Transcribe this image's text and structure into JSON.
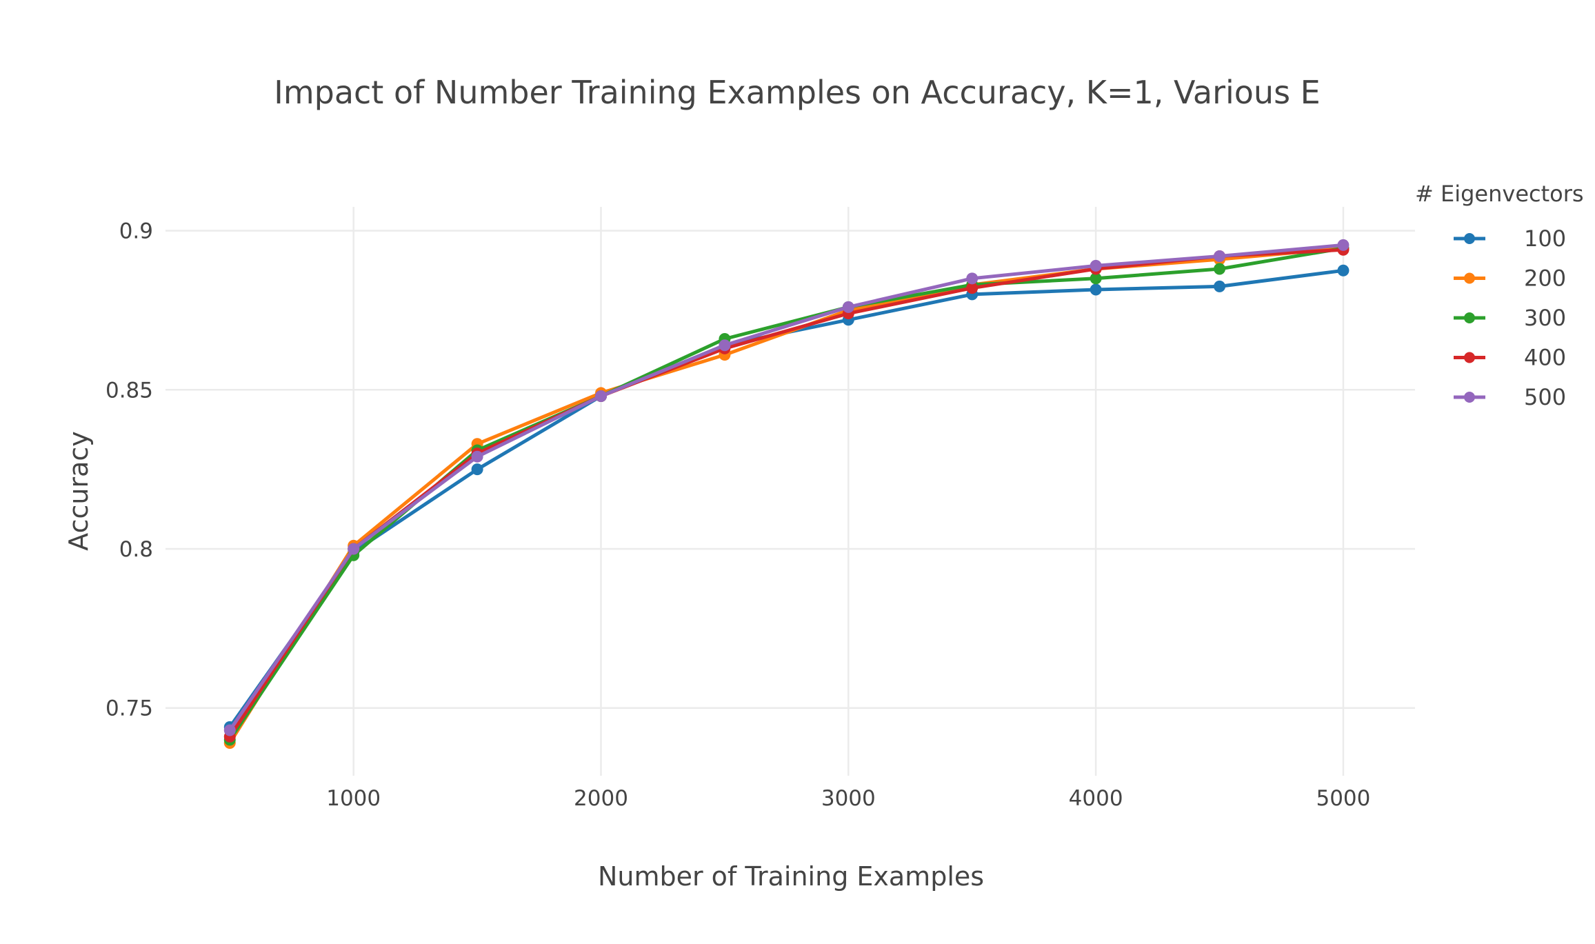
{
  "chart_data": {
    "type": "line",
    "title": "Impact of Number Training Examples on Accuracy, K=1, Various E",
    "xlabel": "Number of Training Examples",
    "ylabel": "Accuracy",
    "x": [
      500,
      1000,
      1500,
      2000,
      2500,
      3000,
      3500,
      4000,
      4500,
      5000
    ],
    "xlim": [
      240,
      5290
    ],
    "ylim": [
      0.7287,
      0.9075
    ],
    "xticks": [
      1000,
      2000,
      3000,
      4000,
      5000
    ],
    "xtick_labels": [
      "1000",
      "2000",
      "3000",
      "4000",
      "5000"
    ],
    "yticks": [
      0.75,
      0.8,
      0.85,
      0.9
    ],
    "ytick_labels": [
      "0.75",
      "0.8",
      "0.85",
      "0.9"
    ],
    "grid": true,
    "legend_title": "# Eigenvectors",
    "legend_position": "right",
    "series": [
      {
        "name": "100",
        "color": "#1f77b4",
        "values": [
          0.744,
          0.799,
          0.825,
          0.848,
          0.864,
          0.872,
          0.88,
          0.8815,
          0.8825,
          0.8875
        ]
      },
      {
        "name": "200",
        "color": "#ff7f0e",
        "values": [
          0.739,
          0.801,
          0.833,
          0.849,
          0.861,
          0.875,
          0.883,
          0.888,
          0.891,
          0.8945
        ]
      },
      {
        "name": "300",
        "color": "#2ca02c",
        "values": [
          0.74,
          0.798,
          0.831,
          0.848,
          0.866,
          0.876,
          0.883,
          0.885,
          0.888,
          0.8945
        ]
      },
      {
        "name": "400",
        "color": "#d62728",
        "values": [
          0.741,
          0.8,
          0.83,
          0.848,
          0.863,
          0.874,
          0.882,
          0.888,
          0.892,
          0.894
        ]
      },
      {
        "name": "500",
        "color": "#9467bd",
        "values": [
          0.743,
          0.8,
          0.829,
          0.848,
          0.864,
          0.876,
          0.885,
          0.889,
          0.892,
          0.8955
        ]
      }
    ]
  }
}
